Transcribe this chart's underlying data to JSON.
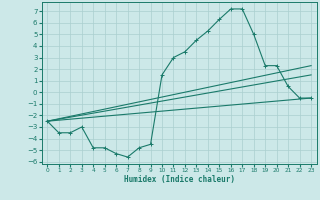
{
  "background_color": "#cce8e8",
  "grid_color": "#aacfcf",
  "line_color": "#1a7a6a",
  "xlabel": "Humidex (Indice chaleur)",
  "xlim": [
    -0.5,
    23.5
  ],
  "ylim": [
    -6.2,
    7.8
  ],
  "xticks": [
    0,
    1,
    2,
    3,
    4,
    5,
    6,
    7,
    8,
    9,
    10,
    11,
    12,
    13,
    14,
    15,
    16,
    17,
    18,
    19,
    20,
    21,
    22,
    23
  ],
  "yticks": [
    -6,
    -5,
    -4,
    -3,
    -2,
    -1,
    0,
    1,
    2,
    3,
    4,
    5,
    6,
    7
  ],
  "curve1_x": [
    0,
    1,
    2,
    3,
    4,
    5,
    6,
    7,
    8,
    9,
    10,
    11,
    12,
    13,
    14,
    15,
    16,
    17,
    18,
    19,
    20,
    21,
    22,
    23
  ],
  "curve1_y": [
    -2.5,
    -3.5,
    -3.5,
    -3.0,
    -4.8,
    -4.8,
    -5.3,
    -5.6,
    -4.8,
    -4.5,
    1.5,
    3.0,
    3.5,
    4.5,
    5.3,
    6.3,
    7.2,
    7.2,
    5.0,
    2.3,
    2.3,
    0.5,
    -0.5,
    -0.5
  ],
  "curve2_x": [
    0,
    23
  ],
  "curve2_y": [
    -2.5,
    2.3
  ],
  "curve3_x": [
    0,
    23
  ],
  "curve3_y": [
    -2.5,
    1.5
  ],
  "curve4_x": [
    0,
    23
  ],
  "curve4_y": [
    -2.5,
    -0.5
  ]
}
